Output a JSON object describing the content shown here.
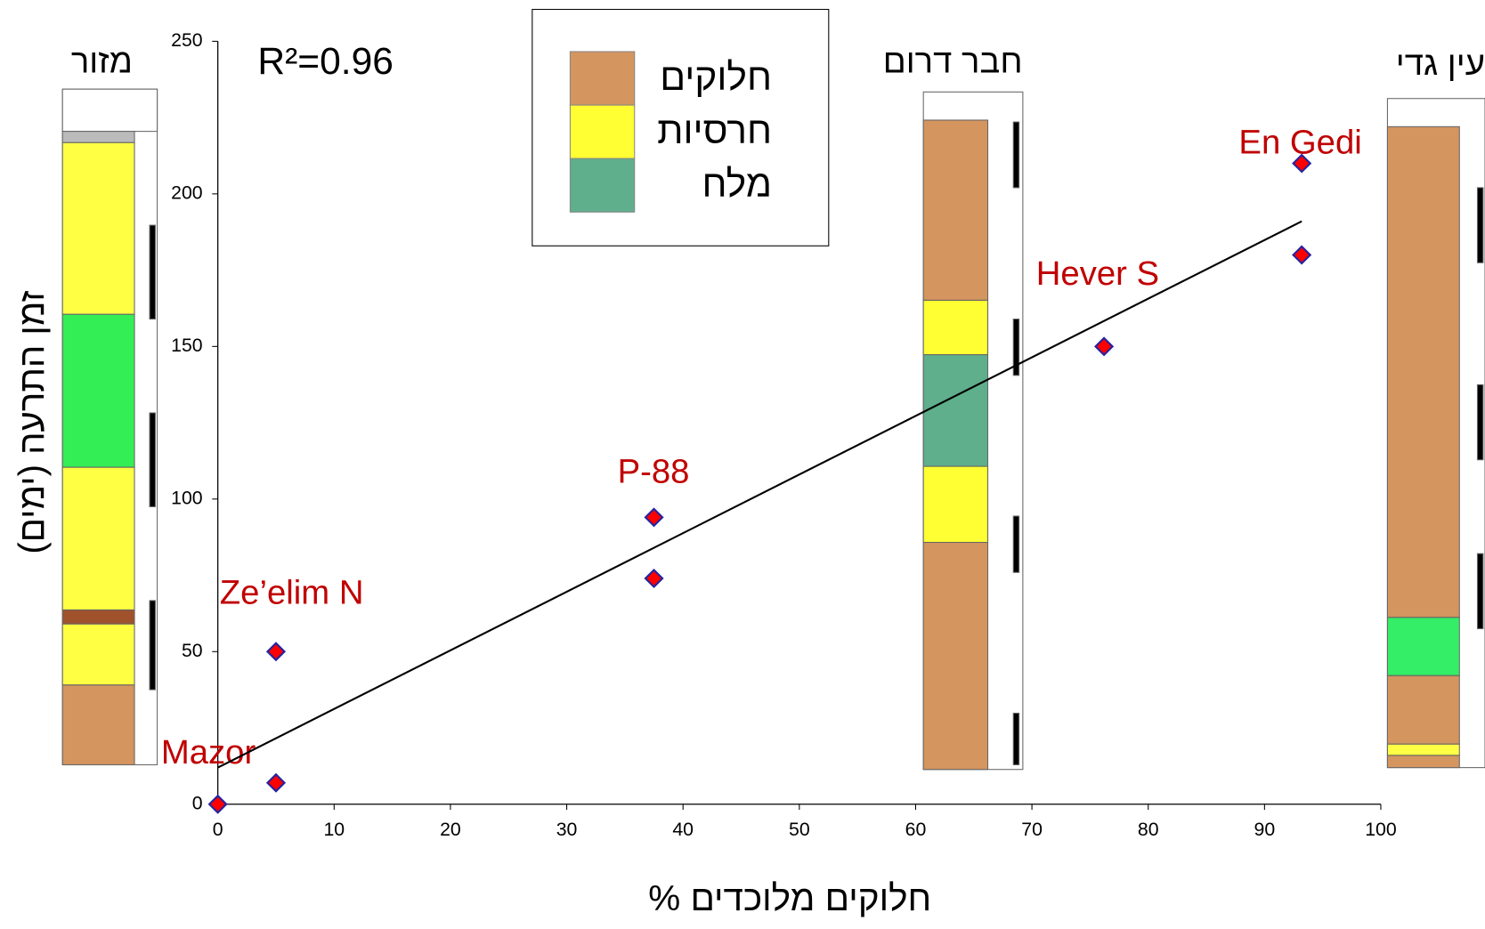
{
  "chart_data": {
    "type": "scatter",
    "x": [
      0,
      5,
      5,
      37.5,
      37.5,
      76.2,
      93.2,
      93.2
    ],
    "values": [
      0,
      7,
      50,
      94,
      74,
      150,
      180,
      210
    ],
    "color": "#ff0000",
    "edge_color": "#2424a0",
    "xlim": [
      0,
      100
    ],
    "xticks": [
      0,
      10,
      20,
      30,
      40,
      50,
      60,
      70,
      80,
      90,
      100
    ],
    "ylim": [
      0,
      250
    ],
    "yticks": [
      0,
      50,
      100,
      150,
      200,
      250
    ],
    "xlabel": "% חלוקים מלוכדים",
    "ylabel": "זמן התרעה (ימים)",
    "trendline": {
      "x": [
        0,
        93.2
      ],
      "y": [
        12,
        191
      ],
      "color": "#000000"
    },
    "r_squared_label": "R²=0.96",
    "annotations": [
      "Mazor",
      "Ze’elim N",
      "P-88",
      "Hever S",
      "En Gedi"
    ],
    "column_titles": [
      "מזור",
      "חבר דרום",
      "עין גדי"
    ],
    "legend": [
      {
        "name": "חלוקים",
        "color": "#d4955f"
      },
      {
        "name": "חרסיות",
        "color": "#ffff33"
      },
      {
        "name": "מלח",
        "color": "#5fae8c"
      }
    ]
  }
}
